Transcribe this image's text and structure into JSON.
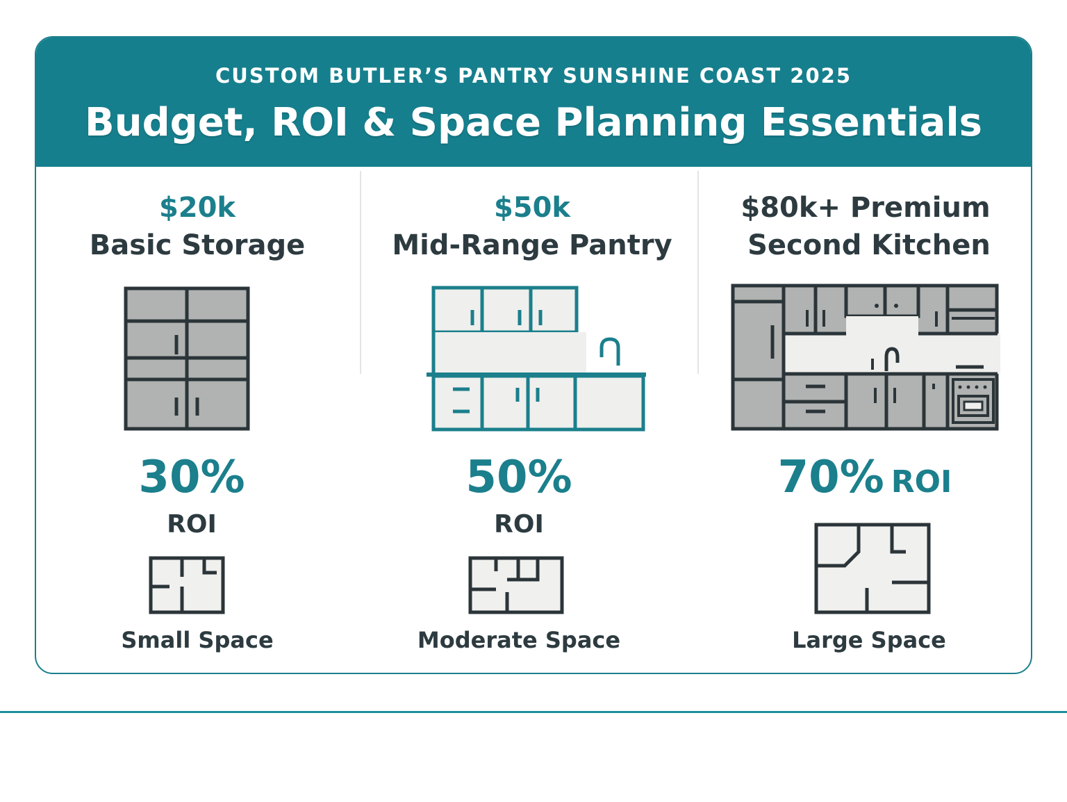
{
  "header": {
    "eyebrow": "CUSTOM BUTLER’S PANTRY SUNSHINE COAST  2025",
    "title": "Budget, ROI & Space Planning Essentials"
  },
  "tiers": [
    {
      "price": "$20k",
      "name": "Basic Storage",
      "roi_pct": "30%",
      "roi_label": "ROI",
      "space": "Small Space",
      "illustration": "basic-storage-cabinet-icon"
    },
    {
      "price": "$50k",
      "name": "Mid-Range Pantry",
      "roi_pct": "50%",
      "roi_label": "ROI",
      "space": "Moderate Space",
      "illustration": "mid-range-pantry-icon"
    },
    {
      "price": "$80k+ Premium",
      "name": "Second Kitchen",
      "roi_pct": "70%",
      "roi_label": "ROI",
      "space": "Large Space",
      "illustration": "second-kitchen-icon"
    }
  ],
  "colors": {
    "accent": "#167f8d",
    "text": "#2d3b40",
    "panel": "#b0b3b1"
  }
}
